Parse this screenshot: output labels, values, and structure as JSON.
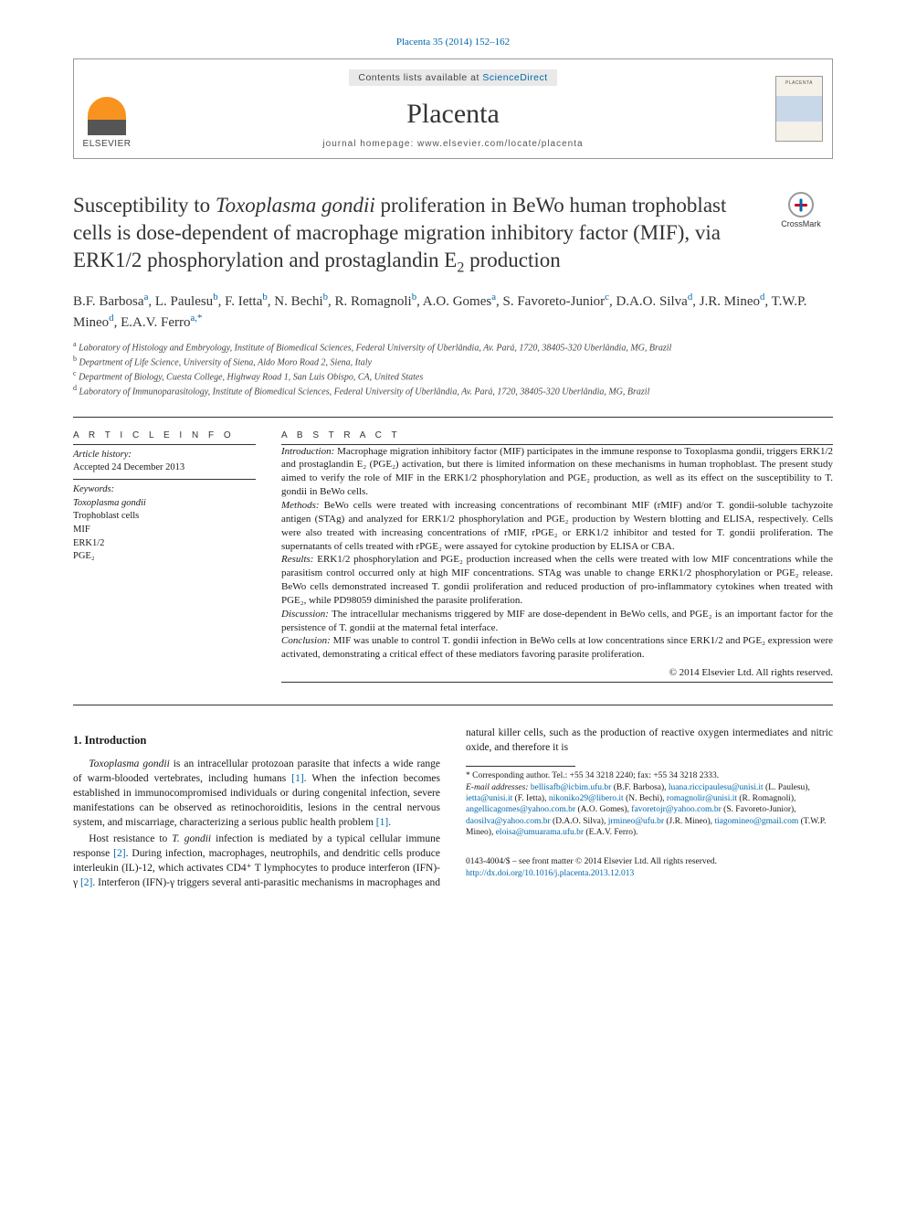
{
  "citation": "Placenta 35 (2014) 152–162",
  "header": {
    "contents_prefix": "Contents lists available at ",
    "contents_link": "ScienceDirect",
    "journal": "Placenta",
    "homepage_prefix": "journal homepage: ",
    "homepage_url": "www.elsevier.com/locate/placenta",
    "publisher": "ELSEVIER"
  },
  "crossmark_label": "CrossMark",
  "title_parts": {
    "p1": "Susceptibility to ",
    "ital1": "Toxoplasma gondii",
    "p2": " proliferation in BeWo human trophoblast cells is dose-dependent of macrophage migration inhibitory factor (MIF), via ERK1/2 phosphorylation and prostaglandin E",
    "sub": "2",
    "p3": " production"
  },
  "authors_html": "B.F. Barbosa<span class='sup'>a</span>, L. Paulesu<span class='sup'>b</span>, F. Ietta<span class='sup'>b</span>, N. Bechi<span class='sup'>b</span>, R. Romagnoli<span class='sup'>b</span>, A.O. Gomes<span class='sup'>a</span>, S. Favoreto-Junior<span class='sup'>c</span>, D.A.O. Silva<span class='sup'>d</span>, J.R. Mineo<span class='sup'>d</span>, T.W.P. Mineo<span class='sup'>d</span>, E.A.V. Ferro<span class='sup'>a,*</span>",
  "affiliations": [
    {
      "sup": "a",
      "text": "Laboratory of Histology and Embryology, Institute of Biomedical Sciences, Federal University of Uberlândia, Av. Pará, 1720, 38405-320 Uberlândia, MG, Brazil"
    },
    {
      "sup": "b",
      "text": "Department of Life Science, University of Siena, Aldo Moro Road 2, Siena, Italy"
    },
    {
      "sup": "c",
      "text": "Department of Biology, Cuesta College, Highway Road 1, San Luis Obispo, CA, United States"
    },
    {
      "sup": "d",
      "text": "Laboratory of Immunoparasitology, Institute of Biomedical Sciences, Federal University of Uberlândia, Av. Pará, 1720, 38405-320 Uberlândia, MG, Brazil"
    }
  ],
  "article_info": {
    "heading": "A R T I C L E   I N F O",
    "history_label": "Article history:",
    "accepted": "Accepted 24 December 2013",
    "keywords_label": "Keywords:",
    "keywords": [
      "Toxoplasma gondii",
      "Trophoblast cells",
      "MIF",
      "ERK1/2",
      "PGE₂"
    ]
  },
  "abstract": {
    "heading": "A B S T R A C T",
    "intro_label": "Introduction:",
    "intro": " Macrophage migration inhibitory factor (MIF) participates in the immune response to Toxoplasma gondii, triggers ERK1/2 and prostaglandin E₂ (PGE₂) activation, but there is limited information on these mechanisms in human trophoblast. The present study aimed to verify the role of MIF in the ERK1/2 phosphorylation and PGE₂ production, as well as its effect on the susceptibility to T. gondii in BeWo cells.",
    "methods_label": "Methods:",
    "methods": " BeWo cells were treated with increasing concentrations of recombinant MIF (rMIF) and/or T. gondii-soluble tachyzoite antigen (STAg) and analyzed for ERK1/2 phosphorylation and PGE₂ production by Western blotting and ELISA, respectively. Cells were also treated with increasing concentrations of rMIF, rPGE₂ or ERK1/2 inhibitor and tested for T. gondii proliferation. The supernatants of cells treated with rPGE₂ were assayed for cytokine production by ELISA or CBA.",
    "results_label": "Results:",
    "results": " ERK1/2 phosphorylation and PGE₂ production increased when the cells were treated with low MIF concentrations while the parasitism control occurred only at high MIF concentrations. STAg was unable to change ERK1/2 phosphorylation or PGE₂ release. BeWo cells demonstrated increased T. gondii proliferation and reduced production of pro-inflammatory cytokines when treated with PGE₂, while PD98059 diminished the parasite proliferation.",
    "discussion_label": "Discussion:",
    "discussion": " The intracellular mechanisms triggered by MIF are dose-dependent in BeWo cells, and PGE₂ is an important factor for the persistence of T. gondii at the maternal fetal interface.",
    "conclusion_label": "Conclusion:",
    "conclusion": " MIF was unable to control T. gondii infection in BeWo cells at low concentrations since ERK1/2 and PGE₂ expression were activated, demonstrating a critical effect of these mediators favoring parasite proliferation.",
    "copyright": "© 2014 Elsevier Ltd. All rights reserved."
  },
  "body": {
    "section_heading": "1. Introduction",
    "para1_pre": "Toxoplasma gondii",
    "para1": " is an intracellular protozoan parasite that infects a wide range of warm-blooded vertebrates, including humans ",
    "cite1": "[1]",
    "para1b": ". When the infection becomes established in immunocompromised individuals or during congenital infection, severe manifestations can be observed as retinochoroiditis, lesions in the central nervous system, and miscarriage, characterizing a serious public health problem ",
    "cite1b": "[1]",
    "para1c": ".",
    "para2a": "Host resistance to ",
    "para2_ital": "T. gondii",
    "para2b": " infection is mediated by a typical cellular immune response ",
    "cite2a": "[2]",
    "para2c": ". During infection, macrophages, neutrophils, and dendritic cells produce interleukin (IL)-12, which activates CD4⁺ T lymphocytes to produce interferon (IFN)-γ ",
    "cite2b": "[2]",
    "para2d": ". Interferon (IFN)-γ triggers several anti-parasitic mechanisms in macrophages and natural killer cells, such as the production of reactive oxygen intermediates and nitric oxide, and therefore it is"
  },
  "footnotes": {
    "corr": "* Corresponding author. Tel.: +55 34 3218 2240; fax: +55 34 3218 2333.",
    "email_label": "E-mail addresses:",
    "emails": "bellisafb@icbim.ufu.br (B.F. Barbosa), luana.riccipaulesu@unisi.it (L. Paulesu), ietta@unisi.it (F. Ietta), nikoniko29@libero.it (N. Bechi), romagnolir@unisi.it (R. Romagnoli), angellicagomes@yahoo.com.br (A.O. Gomes), favoretojr@yahoo.com.br (S. Favoreto-Junior), daosilva@yahoo.com.br (D.A.O. Silva), jrmineo@ufu.br (J.R. Mineo), tiagomineo@gmail.com (T.W.P. Mineo), eloisa@umuarama.ufu.br (E.A.V. Ferro)."
  },
  "bottom": {
    "issn": "0143-4004/$ – see front matter © 2014 Elsevier Ltd. All rights reserved.",
    "doi": "http://dx.doi.org/10.1016/j.placenta.2013.12.013"
  },
  "colors": {
    "link": "#0066aa",
    "text": "#1a1a1a",
    "rule": "#333333",
    "publisher_orange": "#f7931e"
  }
}
